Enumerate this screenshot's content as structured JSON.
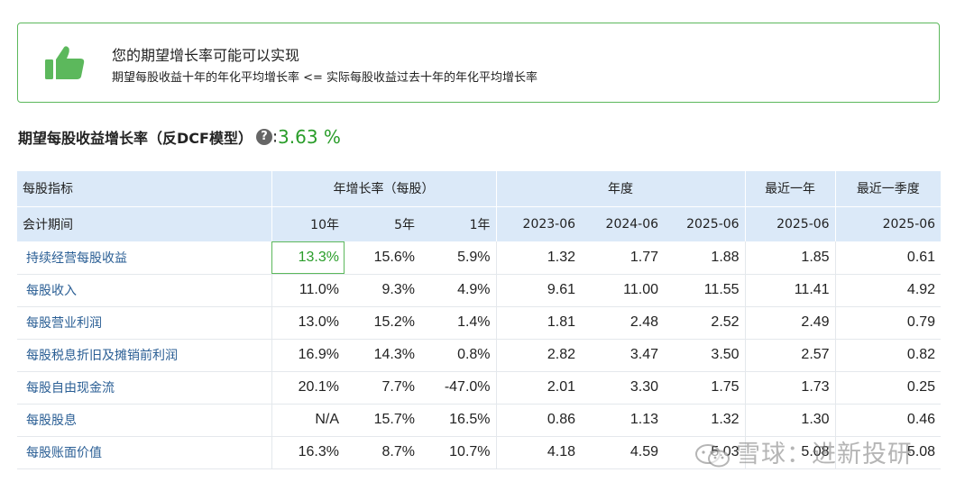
{
  "banner": {
    "icon": "thumbs-up-icon",
    "title": "您的期望增长率可能可以实现",
    "subtitle": "期望每股收益十年的年化平均增长率 <= 实际每股收益过去十年的年化平均增长率",
    "accent": "#5cb85c"
  },
  "metric": {
    "label": "期望每股收益增长率（反DCF模型）",
    "help_icon": "question-circle-icon",
    "colon": ":",
    "value": "3.63 %",
    "value_color": "#2a9d2a"
  },
  "table": {
    "header1": {
      "indicator": "每股指标",
      "growth": "年增长率（每股）",
      "annual": "年度",
      "ttm": "最近一年",
      "quarter": "最近一季度"
    },
    "header2": [
      "会计期间",
      "10年",
      "5年",
      "1年",
      "2023-06",
      "2024-06",
      "2025-06",
      "2025-06",
      "2025-06"
    ],
    "rows": [
      {
        "name": "持续经营每股收益",
        "cells": [
          "13.3%",
          "15.6%",
          "5.9%",
          "1.32",
          "1.77",
          "1.88",
          "1.85",
          "0.61"
        ]
      },
      {
        "name": "每股收入",
        "cells": [
          "11.0%",
          "9.3%",
          "4.9%",
          "9.61",
          "11.00",
          "11.55",
          "11.41",
          "4.92"
        ]
      },
      {
        "name": "每股营业利润",
        "cells": [
          "13.0%",
          "15.2%",
          "1.4%",
          "1.81",
          "2.48",
          "2.52",
          "2.49",
          "0.79"
        ]
      },
      {
        "name": "每股税息折旧及摊销前利润",
        "cells": [
          "16.9%",
          "14.3%",
          "0.8%",
          "2.82",
          "3.47",
          "3.50",
          "2.57",
          "0.82"
        ]
      },
      {
        "name": "每股自由现金流",
        "cells": [
          "20.1%",
          "7.7%",
          "-47.0%",
          "2.01",
          "3.30",
          "1.75",
          "1.73",
          "0.25"
        ]
      },
      {
        "name": "每股股息",
        "cells": [
          "N/A",
          "15.7%",
          "16.5%",
          "0.86",
          "1.13",
          "1.32",
          "1.30",
          "0.46"
        ]
      },
      {
        "name": "每股账面价值",
        "cells": [
          "16.3%",
          "8.7%",
          "10.7%",
          "4.18",
          "4.59",
          "5.03",
          "5.08",
          "5.08"
        ]
      }
    ]
  },
  "watermark": {
    "icon": "wechat-icon",
    "text": "雪球：进新投研"
  }
}
